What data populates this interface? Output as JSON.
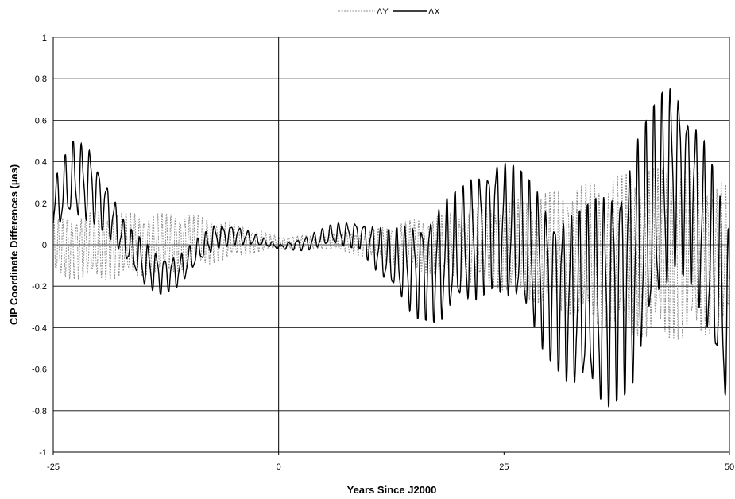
{
  "chart_data": {
    "type": "line",
    "xlabel": "Years Since J2000",
    "ylabel": "CIP Coordinate Differences (µas)",
    "xlim": [
      -25,
      50
    ],
    "ylim": [
      -1,
      1
    ],
    "x_ticks": [
      "-25",
      "0",
      "25",
      "50"
    ],
    "y_ticks": [
      "-1",
      "-0.8",
      "-0.6",
      "-0.4",
      "-0.2",
      "0",
      "0.2",
      "0.4",
      "0.6",
      "0.8",
      "1"
    ],
    "grid": "horizontal",
    "legend_position": "top-center",
    "series": [
      {
        "name": "ΔY",
        "style": "dotted",
        "color": "#8c8c8c",
        "envelope": {
          "x": [
            -25,
            -20,
            -15,
            -10,
            -5,
            0,
            5,
            10,
            15,
            20,
            25,
            30,
            35,
            40,
            45,
            50
          ],
          "y_upper": [
            0.12,
            0.16,
            0.15,
            0.15,
            0.1,
            0.04,
            0.05,
            0.07,
            0.12,
            0.16,
            0.2,
            0.25,
            0.3,
            0.36,
            0.38,
            0.28
          ],
          "y_lower": [
            -0.16,
            -0.17,
            -0.15,
            -0.12,
            -0.06,
            -0.02,
            -0.02,
            -0.06,
            -0.12,
            -0.17,
            -0.22,
            -0.3,
            -0.38,
            -0.44,
            -0.46,
            -0.4
          ]
        }
      },
      {
        "name": "ΔX",
        "style": "solid",
        "color": "#000000",
        "envelope": {
          "x": [
            -25,
            -23,
            -21,
            -19,
            -17,
            -15,
            -13,
            -11,
            -9,
            -7,
            -5,
            -3,
            0,
            3,
            6,
            9,
            12,
            15,
            18,
            21,
            24,
            27,
            30,
            33,
            36,
            39,
            42,
            44,
            46,
            48,
            50
          ],
          "y_upper": [
            0.3,
            0.5,
            0.48,
            0.3,
            0.1,
            0.02,
            -0.05,
            -0.05,
            0.03,
            0.1,
            0.1,
            0.06,
            0.0,
            0.04,
            0.1,
            0.12,
            0.07,
            0.1,
            0.2,
            0.3,
            0.45,
            0.35,
            0.2,
            0.15,
            0.25,
            0.45,
            0.7,
            0.82,
            0.65,
            0.4,
            0.05
          ],
          "y_lower": [
            0.05,
            0.12,
            0.12,
            0.05,
            -0.08,
            -0.2,
            -0.24,
            -0.2,
            -0.1,
            -0.02,
            0.0,
            0.0,
            -0.02,
            -0.03,
            0.0,
            -0.02,
            -0.2,
            -0.35,
            -0.38,
            -0.3,
            -0.2,
            -0.35,
            -0.55,
            -0.72,
            -0.8,
            -0.7,
            -0.35,
            -0.1,
            -0.2,
            -0.55,
            -0.9
          ]
        }
      }
    ]
  }
}
